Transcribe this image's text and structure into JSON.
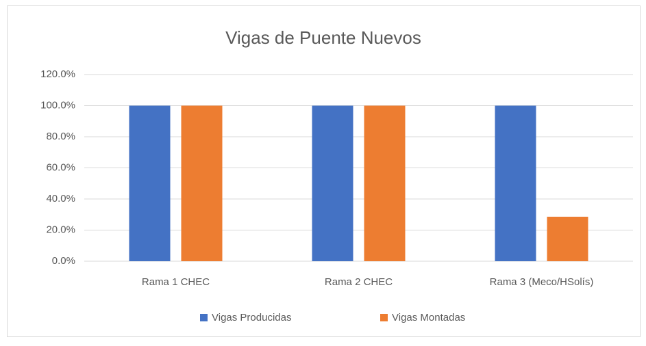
{
  "chart_data": {
    "type": "bar",
    "title": "Vigas de Puente Nuevos",
    "categories": [
      "Rama 1 CHEC",
      "Rama 2 CHEC",
      "Rama 3 (Meco/HSolís)"
    ],
    "series": [
      {
        "name": "Vigas Producidas",
        "color": "#4472c4",
        "values": [
          100,
          100,
          100
        ]
      },
      {
        "name": "Vigas Montadas",
        "color": "#ed7d31",
        "values": [
          100,
          100,
          28.6
        ]
      }
    ],
    "ylim": [
      0,
      120
    ],
    "yticks": [
      {
        "value": 0,
        "label": "0.0%"
      },
      {
        "value": 20,
        "label": "20.0%"
      },
      {
        "value": 40,
        "label": "40.0%"
      },
      {
        "value": 60,
        "label": "60.0%"
      },
      {
        "value": 80,
        "label": "80.0%"
      },
      {
        "value": 100,
        "label": "100.0%"
      },
      {
        "value": 120,
        "label": "120.0%"
      }
    ],
    "grid": true,
    "legend": "bottom"
  }
}
